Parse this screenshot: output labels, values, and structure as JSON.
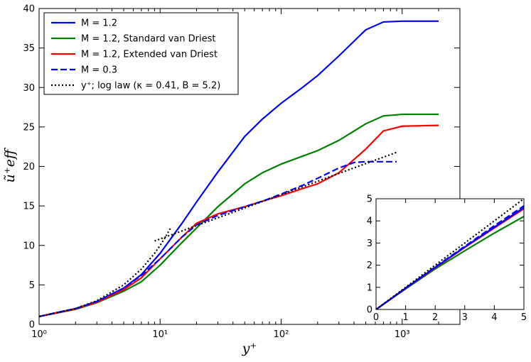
{
  "chart_data": [
    {
      "type": "line",
      "name": "main",
      "xscale": "log",
      "xlim": [
        1,
        3000
      ],
      "ylim": [
        0,
        40
      ],
      "xlabel": "y⁺",
      "ylabel": "ũ⁺eff",
      "xticks": [
        {
          "value": 1,
          "label": "10⁰"
        },
        {
          "value": 10,
          "label": "10¹"
        },
        {
          "value": 100,
          "label": "10²"
        },
        {
          "value": 1000,
          "label": "10³"
        }
      ],
      "yticks": [
        0,
        5,
        10,
        15,
        20,
        25,
        30,
        35,
        40
      ],
      "legend_position": "top-left",
      "series": [
        {
          "name": "M = 1.2",
          "color": "#0000ff",
          "dash": "solid",
          "x": [
            1,
            2,
            3,
            5,
            7,
            10,
            15,
            20,
            30,
            50,
            70,
            100,
            150,
            200,
            300,
            500,
            700,
            1000,
            2000
          ],
          "y": [
            1.0,
            2.0,
            2.9,
            4.6,
            6.3,
            9.0,
            12.7,
            15.5,
            19.3,
            23.8,
            26.0,
            28.0,
            30.0,
            31.5,
            34.0,
            37.3,
            38.3,
            38.4,
            38.4
          ]
        },
        {
          "name": "M = 1.2, Standard van Driest",
          "color": "#008000",
          "dash": "solid",
          "x": [
            1,
            2,
            3,
            5,
            7,
            10,
            15,
            20,
            30,
            50,
            70,
            100,
            150,
            200,
            300,
            500,
            700,
            1000,
            2000
          ],
          "y": [
            1.0,
            1.9,
            2.75,
            4.2,
            5.4,
            7.5,
            10.3,
            12.2,
            14.9,
            17.8,
            19.2,
            20.3,
            21.3,
            22.0,
            23.3,
            25.4,
            26.4,
            26.6,
            26.6
          ]
        },
        {
          "name": "M = 1.2, Extended van Driest",
          "color": "#ff0000",
          "dash": "solid",
          "x": [
            1,
            2,
            3,
            5,
            7,
            10,
            15,
            20,
            30,
            50,
            70,
            100,
            150,
            200,
            300,
            500,
            700,
            1000,
            2000
          ],
          "y": [
            1.0,
            1.95,
            2.8,
            4.4,
            5.9,
            8.3,
            11.0,
            12.8,
            14.0,
            14.9,
            15.6,
            16.3,
            17.2,
            17.8,
            19.2,
            22.2,
            24.5,
            25.1,
            25.2
          ]
        },
        {
          "name": "M = 0.3",
          "color": "#0000ff",
          "dash": "dashed",
          "x": [
            1,
            2,
            3,
            5,
            7,
            10,
            15,
            20,
            30,
            50,
            70,
            100,
            150,
            200,
            300,
            400,
            500,
            700,
            900
          ],
          "y": [
            1.0,
            2.0,
            2.9,
            4.6,
            6.2,
            8.3,
            11.0,
            12.6,
            13.8,
            14.9,
            15.6,
            16.5,
            17.6,
            18.5,
            19.8,
            20.5,
            20.6,
            20.6,
            20.6
          ]
        },
        {
          "name": "y⁺; log law (κ = 0.41, B = 5.2)",
          "color": "#000000",
          "dash": "dotted",
          "x": [
            1,
            2,
            3,
            5,
            7,
            9,
            10,
            11,
            12.3
          ],
          "y": [
            1,
            2,
            3,
            5,
            7,
            9,
            10,
            11,
            12.3
          ],
          "x2": [
            9,
            12,
            20,
            50,
            100,
            200,
            500,
            900
          ],
          "y2": [
            10.56,
            11.26,
            12.51,
            14.74,
            16.43,
            18.12,
            20.36,
            21.79
          ]
        }
      ]
    },
    {
      "type": "line",
      "name": "inset",
      "xscale": "linear",
      "xlim": [
        0,
        5
      ],
      "ylim": [
        0,
        5
      ],
      "xticks": [
        0,
        1,
        2,
        3,
        4,
        5
      ],
      "yticks": [
        0,
        1,
        2,
        3,
        4,
        5
      ],
      "series": [
        {
          "name": "M = 1.2, Standard van Driest",
          "color": "#008000",
          "dash": "solid",
          "x": [
            0,
            1,
            2,
            3,
            4,
            5
          ],
          "y": [
            0,
            0.93,
            1.83,
            2.65,
            3.45,
            4.2
          ]
        },
        {
          "name": "M = 1.2, Extended van Driest",
          "color": "#ff0000",
          "dash": "solid",
          "x": [
            0,
            1,
            2,
            3,
            4,
            5
          ],
          "y": [
            0,
            0.95,
            1.88,
            2.8,
            3.68,
            4.55
          ]
        },
        {
          "name": "M = 1.2",
          "color": "#0000ff",
          "dash": "solid",
          "x": [
            0,
            1,
            2,
            3,
            4,
            5
          ],
          "y": [
            0,
            0.96,
            1.9,
            2.82,
            3.72,
            4.6
          ]
        },
        {
          "name": "M = 0.3",
          "color": "#0000ff",
          "dash": "dashed",
          "x": [
            0,
            1,
            2,
            3,
            4,
            5
          ],
          "y": [
            0,
            0.97,
            1.92,
            2.85,
            3.78,
            4.68
          ]
        },
        {
          "name": "y⁺",
          "color": "#000000",
          "dash": "dotted",
          "x": [
            0,
            5
          ],
          "y": [
            0,
            5
          ]
        }
      ]
    }
  ]
}
